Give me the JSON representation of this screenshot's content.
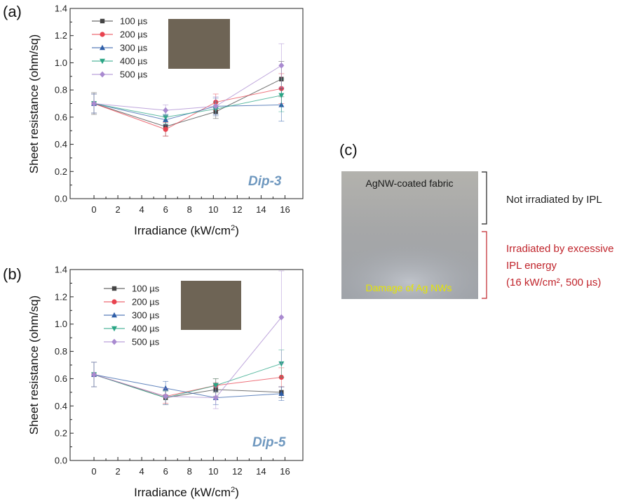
{
  "colors": {
    "s100": "#444444",
    "s200": "#e8434f",
    "s300": "#2f5ea8",
    "s400": "#2aa585",
    "s500": "#a98ad0",
    "dip_label": "#6f98bf",
    "note_black": "#222222",
    "note_red": "#c0242b",
    "damage_text": "#e6e600",
    "inset_photo": "#6e6455"
  },
  "chart_data": [
    {
      "panel": "(a)",
      "type": "line",
      "xlabel": "Irradiance (kW/cm²)",
      "ylabel": "Sheet resistance (ohm/sq)",
      "annotation": "Dip-3",
      "xlim": [
        -2,
        17.5
      ],
      "ylim": [
        0,
        1.4
      ],
      "x_ticks": [
        "0",
        "2",
        "4",
        "6",
        "8",
        "10",
        "12",
        "14",
        "16"
      ],
      "y_ticks": [
        "0.0",
        "0.2",
        "0.4",
        "0.6",
        "0.8",
        "1.0",
        "1.2",
        "1.4"
      ],
      "x": [
        0,
        6,
        10.2,
        15.7
      ],
      "legend_position": "top-left",
      "series": [
        {
          "name": "100 µs",
          "marker": "square",
          "values": [
            0.7,
            0.53,
            0.64,
            0.88
          ],
          "err": [
            0.08,
            0.07,
            0.05,
            0.13
          ]
        },
        {
          "name": "200 µs",
          "marker": "circle",
          "values": [
            0.7,
            0.51,
            0.71,
            0.81
          ],
          "err": [
            0.07,
            0.05,
            0.06,
            0.11
          ]
        },
        {
          "name": "300 µs",
          "marker": "triangle-up",
          "values": [
            0.7,
            0.58,
            0.68,
            0.69
          ],
          "err": [
            0.07,
            0.04,
            0.06,
            0.12
          ]
        },
        {
          "name": "400 µs",
          "marker": "triangle-down",
          "values": [
            0.7,
            0.6,
            0.66,
            0.76
          ],
          "err": [
            0.07,
            0.05,
            0.05,
            0.12
          ]
        },
        {
          "name": "500 µs",
          "marker": "diamond",
          "values": [
            0.7,
            0.65,
            0.68,
            0.98
          ],
          "err": [
            0.07,
            0.04,
            0.07,
            0.16
          ]
        }
      ]
    },
    {
      "panel": "(b)",
      "type": "line",
      "xlabel": "Irradiance (kW/cm²)",
      "ylabel": "Sheet resistance (ohm/sq)",
      "annotation": "Dip-5",
      "xlim": [
        -2,
        17.5
      ],
      "ylim": [
        0,
        1.4
      ],
      "x_ticks": [
        "0",
        "2",
        "4",
        "6",
        "8",
        "10",
        "12",
        "14",
        "16"
      ],
      "y_ticks": [
        "0.0",
        "0.2",
        "0.4",
        "0.6",
        "0.8",
        "1.0",
        "1.2",
        "1.4"
      ],
      "x": [
        0,
        6,
        10.2,
        15.7
      ],
      "legend_position": "top-left",
      "series": [
        {
          "name": "100 µs",
          "marker": "square",
          "values": [
            0.63,
            0.46,
            0.52,
            0.5
          ],
          "err": [
            0.09,
            0.05,
            0.05,
            0.04
          ]
        },
        {
          "name": "200 µs",
          "marker": "circle",
          "values": [
            0.63,
            0.47,
            0.55,
            0.61
          ],
          "err": [
            0.09,
            0.05,
            0.05,
            0.07
          ]
        },
        {
          "name": "300 µs",
          "marker": "triangle-up",
          "values": [
            0.63,
            0.53,
            0.46,
            0.49
          ],
          "err": [
            0.09,
            0.05,
            0.05,
            0.05
          ]
        },
        {
          "name": "400 µs",
          "marker": "triangle-down",
          "values": [
            0.63,
            0.46,
            0.55,
            0.71
          ],
          "err": [
            0.09,
            0.05,
            0.05,
            0.1
          ]
        },
        {
          "name": "500 µs",
          "marker": "diamond",
          "values": [
            0.63,
            0.47,
            0.46,
            1.05
          ],
          "err": [
            0.09,
            0.06,
            0.08,
            0.34
          ]
        }
      ]
    }
  ],
  "panel_c": {
    "letter": "(c)",
    "photo_label": "AgNW-coated fabric",
    "damage_label": "Damage of Ag NWs",
    "note_top": "Not irradiated by IPL",
    "note_bottom_line1": "Irradiated by excessive",
    "note_bottom_line2": "IPL energy",
    "note_bottom_line3": "(16 kW/cm², 500 µs)"
  }
}
